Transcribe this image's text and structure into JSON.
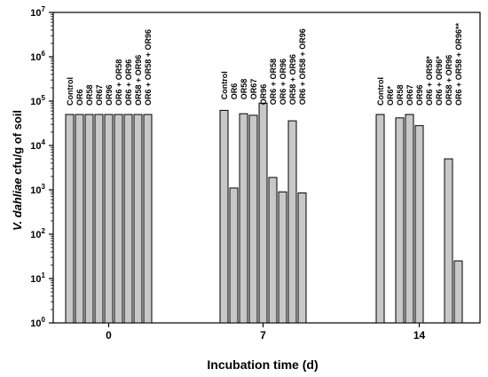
{
  "chart_data": {
    "type": "bar",
    "y_scale": "log",
    "ylim": [
      1,
      10000000
    ],
    "ylabel_italic": "V. dahliae",
    "ylabel_rest": " cfu/g of soil",
    "xlabel": "Incubation time (d)",
    "y_ticks": [
      {
        "value": 1,
        "exp": "0"
      },
      {
        "value": 10,
        "exp": "1"
      },
      {
        "value": 100,
        "exp": "2"
      },
      {
        "value": 1000,
        "exp": "3"
      },
      {
        "value": 10000,
        "exp": "4"
      },
      {
        "value": 100000,
        "exp": "5"
      },
      {
        "value": 1000000,
        "exp": "6"
      },
      {
        "value": 10000000,
        "exp": "7"
      }
    ],
    "bar_color": "#c8c8c8",
    "groups": [
      {
        "x_label": "0",
        "bars": [
          {
            "label": "Control",
            "value": 50000
          },
          {
            "label": "OR6",
            "value": 50000
          },
          {
            "label": "OR58",
            "value": 50000
          },
          {
            "label": "OR67",
            "value": 50000
          },
          {
            "label": "OR96",
            "value": 50000
          },
          {
            "label": "OR6 + OR58",
            "value": 50000
          },
          {
            "label": "OR6 + OR96",
            "value": 50000
          },
          {
            "label": "OR58 + OR96",
            "value": 50000
          },
          {
            "label": "OR6 + OR58 + OR96",
            "value": 50000
          }
        ]
      },
      {
        "x_label": "7",
        "bars": [
          {
            "label": "Control",
            "value": 62000
          },
          {
            "label": "OR6",
            "value": 1100
          },
          {
            "label": "OR58",
            "value": 52000
          },
          {
            "label": "OR67",
            "value": 48000
          },
          {
            "label": "OR96",
            "value": 90000
          },
          {
            "label": "OR6 + OR58",
            "value": 1900
          },
          {
            "label": "OR6 + OR96",
            "value": 900
          },
          {
            "label": "OR58 + OR96",
            "value": 36000
          },
          {
            "label": "OR6 + OR58 + OR96",
            "value": 850
          }
        ]
      },
      {
        "x_label": "14",
        "bars": [
          {
            "label": "Control",
            "value": 50000
          },
          {
            "label": "OR6*",
            "value": null
          },
          {
            "label": "OR58",
            "value": 42000
          },
          {
            "label": "OR67",
            "value": 50000
          },
          {
            "label": "OR96",
            "value": 28000
          },
          {
            "label": "OR6 + OR58*",
            "value": null
          },
          {
            "label": "OR6 + OR96*",
            "value": null
          },
          {
            "label": "OR58 + OR96",
            "value": 5000
          },
          {
            "label": "OR6 + OR58 + OR96**",
            "value": 25
          }
        ]
      }
    ]
  }
}
